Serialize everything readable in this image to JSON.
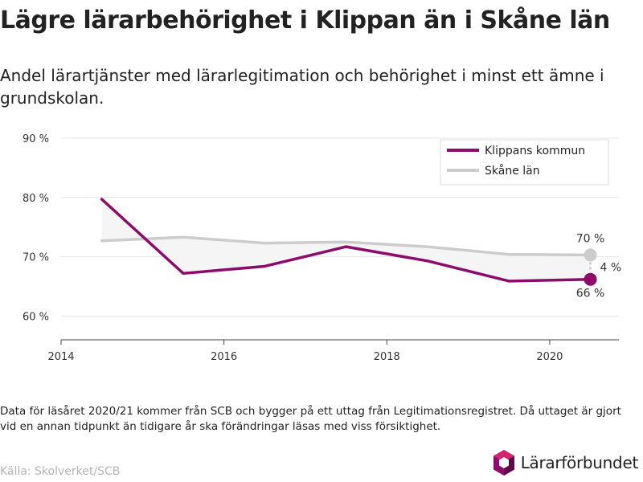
{
  "title": "Lägre lärarbehörighet i Klippan än i Skåne län",
  "subtitle": "Andel lärartjänster med lärarlegitimation och behörighet i minst ett ämne i grundskolan.",
  "footnote": "Data för läsåret 2020/21 kommer från SCB och bygger på ett uttag från Legitimationsregistret. Då uttaget är gjort vid en annan tidpunkt än tidigare år ska förändringar läsas med viss försiktighet.",
  "source": "Källa: Skolverket/SCB",
  "brand": {
    "name": "Lärarförbundet",
    "icon": "lararforbundet-logo"
  },
  "colors": {
    "klippan": "#8c0c6c",
    "skane": "#cccccc",
    "fill": "#f5f5f5",
    "grid": "#e4e4e4"
  },
  "chart_data": {
    "type": "line",
    "x": [
      2014.5,
      2015.5,
      2016.5,
      2017.5,
      2018.5,
      2019.5,
      2020.5
    ],
    "series": [
      {
        "name": "Klippans kommun",
        "values": [
          79.7,
          67.2,
          68.4,
          71.7,
          69.3,
          65.9,
          66.2
        ]
      },
      {
        "name": "Skåne län",
        "values": [
          72.7,
          73.3,
          72.3,
          72.5,
          71.7,
          70.4,
          70.3
        ]
      }
    ],
    "xlim": [
      2014,
      2020.85
    ],
    "ylim": [
      56,
      90
    ],
    "x_ticks": [
      {
        "value": 2014,
        "label": "2014"
      },
      {
        "value": 2016,
        "label": "2016"
      },
      {
        "value": 2018,
        "label": "2018"
      },
      {
        "value": 2020,
        "label": "2020"
      }
    ],
    "y_ticks": [
      {
        "value": 60,
        "label": "60 %"
      },
      {
        "value": 70,
        "label": "70 %"
      },
      {
        "value": 80,
        "label": "80 %"
      },
      {
        "value": 90,
        "label": "90 %"
      }
    ],
    "annotations": {
      "skane_end": "70 %",
      "klippan_end": "66 %",
      "difference": "4 %"
    },
    "legend": "top-right",
    "grid": true,
    "xlabel": "",
    "ylabel": ""
  }
}
